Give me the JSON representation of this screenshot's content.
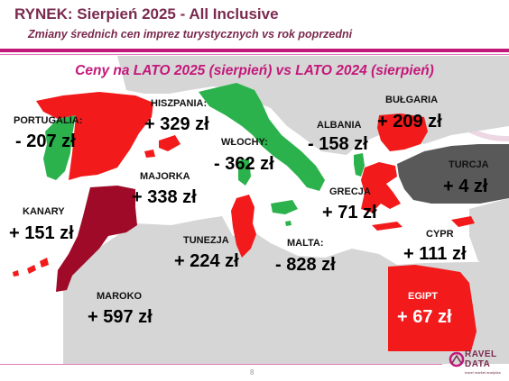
{
  "header": {
    "title": "RYNEK: Sierpień 2025 - All Inclusive",
    "subtitle": "Zmiany średnich cen imprez turystycznych vs rok poprzedni"
  },
  "map": {
    "heading": "Ceny na LATO 2025 (sierpień) vs  LATO 2024 (sierpień)",
    "colors": {
      "decrease": "#2bb24c",
      "increase": "#f21a1a",
      "strong_increase": "#9e0a28",
      "small_change": "#595959",
      "land": "#d6d6d6",
      "sea": "#ffffff"
    },
    "countries": [
      {
        "name": "PORTUGALIA:",
        "change": "- 207 zł",
        "change_pln": -207
      },
      {
        "name": "HISZPANIA:",
        "change": "+ 329 zł",
        "change_pln": 329
      },
      {
        "name": "MAJORKA",
        "change": "+ 338 zł",
        "change_pln": 338
      },
      {
        "name": "KANARY",
        "change": "+ 151 zł",
        "change_pln": 151
      },
      {
        "name": "MAROKO",
        "change": "+ 597 zł",
        "change_pln": 597
      },
      {
        "name": "WŁOCHY:",
        "change": "- 362 zł",
        "change_pln": -362
      },
      {
        "name": "TUNEZJA",
        "change": "+ 224 zł",
        "change_pln": 224
      },
      {
        "name": "MALTA:",
        "change": "- 828 zł",
        "change_pln": -828
      },
      {
        "name": "ALBANIA",
        "change": "- 158 zł",
        "change_pln": -158
      },
      {
        "name": "GRECJA",
        "change": "+ 71 zł",
        "change_pln": 71
      },
      {
        "name": "BUŁGARIA",
        "change": "+ 209 zł",
        "change_pln": 209
      },
      {
        "name": "TURCJA",
        "change": "+ 4 zł",
        "change_pln": 4
      },
      {
        "name": "CYPR",
        "change": "+ 111 zł",
        "change_pln": 111
      },
      {
        "name": "EGIPT",
        "change": "+ 67 zł",
        "change_pln": 67
      }
    ]
  },
  "footer": {
    "page_number": "8",
    "logo_line1": "RAVEL",
    "logo_line2": "DATA",
    "logo_tagline": "travel market analytics"
  }
}
